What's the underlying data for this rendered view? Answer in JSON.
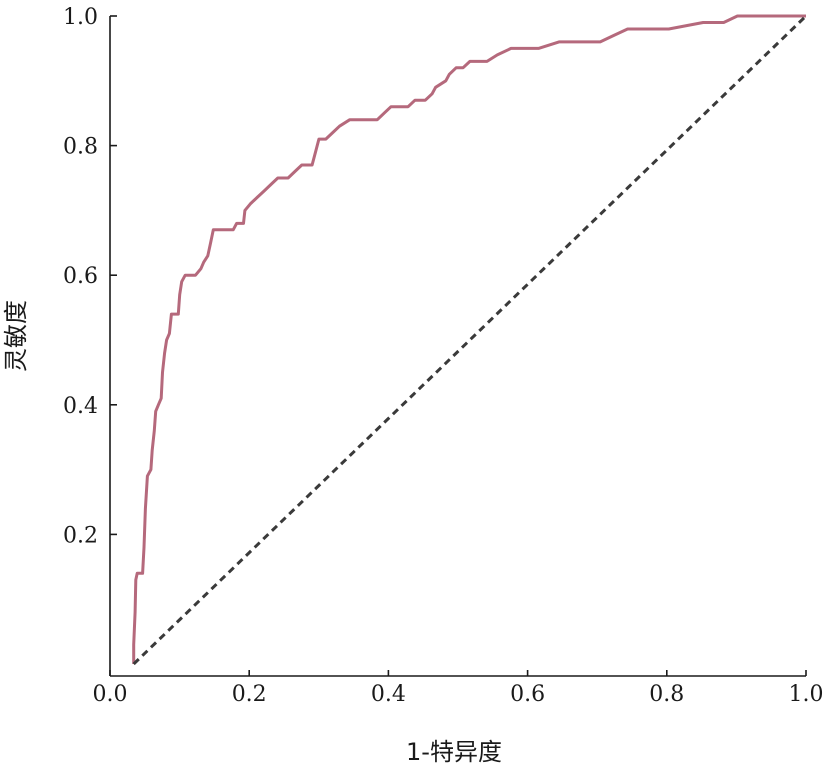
{
  "chart_data": {
    "type": "line",
    "xlabel": "1-特异度",
    "ylabel": "灵敏度",
    "xlim": [
      0,
      1
    ],
    "ylim": [
      0,
      1
    ],
    "x_ticks": [
      "0.0",
      "0.2",
      "0.4",
      "0.6",
      "0.8",
      "1.0"
    ],
    "y_ticks": [
      "0.2",
      "0.4",
      "0.6",
      "0.8",
      "1.0"
    ],
    "grid": false,
    "series": [
      {
        "style": "roc-curve",
        "color": "#b5697c",
        "points": [
          [
            0.02,
            0.0
          ],
          [
            0.02,
            0.03
          ],
          [
            0.022,
            0.08
          ],
          [
            0.023,
            0.13
          ],
          [
            0.025,
            0.14
          ],
          [
            0.033,
            0.14
          ],
          [
            0.035,
            0.18
          ],
          [
            0.037,
            0.24
          ],
          [
            0.04,
            0.29
          ],
          [
            0.045,
            0.3
          ],
          [
            0.047,
            0.33
          ],
          [
            0.05,
            0.36
          ],
          [
            0.052,
            0.39
          ],
          [
            0.056,
            0.4
          ],
          [
            0.06,
            0.41
          ],
          [
            0.062,
            0.45
          ],
          [
            0.065,
            0.48
          ],
          [
            0.068,
            0.5
          ],
          [
            0.072,
            0.51
          ],
          [
            0.075,
            0.54
          ],
          [
            0.085,
            0.54
          ],
          [
            0.087,
            0.57
          ],
          [
            0.09,
            0.59
          ],
          [
            0.095,
            0.6
          ],
          [
            0.11,
            0.6
          ],
          [
            0.118,
            0.61
          ],
          [
            0.122,
            0.62
          ],
          [
            0.128,
            0.63
          ],
          [
            0.132,
            0.65
          ],
          [
            0.136,
            0.67
          ],
          [
            0.15,
            0.67
          ],
          [
            0.165,
            0.67
          ],
          [
            0.17,
            0.68
          ],
          [
            0.18,
            0.68
          ],
          [
            0.182,
            0.7
          ],
          [
            0.19,
            0.71
          ],
          [
            0.2,
            0.72
          ],
          [
            0.21,
            0.73
          ],
          [
            0.22,
            0.74
          ],
          [
            0.23,
            0.75
          ],
          [
            0.245,
            0.75
          ],
          [
            0.255,
            0.76
          ],
          [
            0.265,
            0.77
          ],
          [
            0.28,
            0.77
          ],
          [
            0.285,
            0.79
          ],
          [
            0.29,
            0.81
          ],
          [
            0.3,
            0.81
          ],
          [
            0.31,
            0.82
          ],
          [
            0.32,
            0.83
          ],
          [
            0.335,
            0.84
          ],
          [
            0.36,
            0.84
          ],
          [
            0.375,
            0.84
          ],
          [
            0.385,
            0.85
          ],
          [
            0.395,
            0.86
          ],
          [
            0.42,
            0.86
          ],
          [
            0.43,
            0.87
          ],
          [
            0.445,
            0.87
          ],
          [
            0.455,
            0.88
          ],
          [
            0.46,
            0.89
          ],
          [
            0.475,
            0.9
          ],
          [
            0.48,
            0.91
          ],
          [
            0.49,
            0.92
          ],
          [
            0.5,
            0.92
          ],
          [
            0.51,
            0.93
          ],
          [
            0.535,
            0.93
          ],
          [
            0.55,
            0.94
          ],
          [
            0.57,
            0.95
          ],
          [
            0.585,
            0.95
          ],
          [
            0.61,
            0.95
          ],
          [
            0.64,
            0.96
          ],
          [
            0.67,
            0.96
          ],
          [
            0.7,
            0.96
          ],
          [
            0.72,
            0.97
          ],
          [
            0.74,
            0.98
          ],
          [
            0.8,
            0.98
          ],
          [
            0.85,
            0.99
          ],
          [
            0.88,
            0.99
          ],
          [
            0.9,
            1.0
          ],
          [
            0.96,
            1.0
          ],
          [
            1.0,
            1.0
          ]
        ]
      },
      {
        "style": "reference-diagonal",
        "color": "#3a3a3a",
        "points": [
          [
            0.02,
            0.0
          ],
          [
            1.0,
            1.0
          ]
        ]
      }
    ]
  }
}
